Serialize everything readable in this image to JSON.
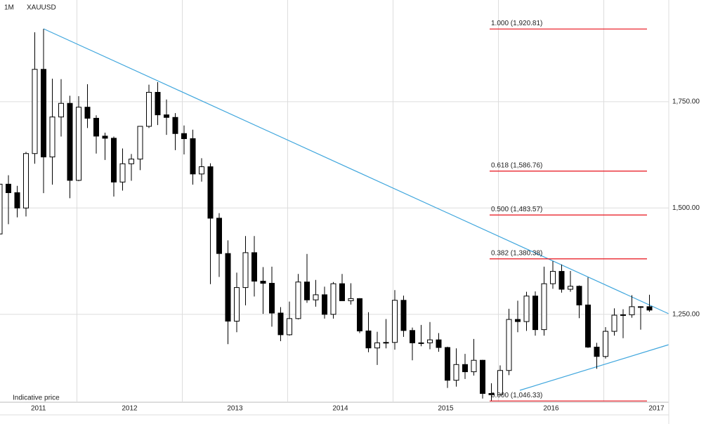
{
  "chart_data": {
    "type": "candlestick",
    "interval": "1M",
    "title": "XAUUSD",
    "note": "Indicative price",
    "x_labels": [
      "2011",
      "2012",
      "2013",
      "2014",
      "2015",
      "2016",
      "2017"
    ],
    "categories": [
      null,
      null,
      null,
      null,
      null,
      null,
      null,
      null,
      null,
      null,
      null,
      null,
      null,
      null,
      null,
      null,
      null,
      null,
      null,
      null,
      null,
      null,
      null,
      null,
      null,
      null,
      null,
      null,
      null,
      null,
      null,
      null,
      null,
      null,
      null,
      null,
      null,
      null,
      null,
      null,
      null,
      null,
      null,
      null,
      null,
      null,
      null,
      null,
      null,
      null,
      null,
      null,
      null,
      null,
      null,
      null,
      null,
      null,
      null,
      null,
      null,
      null,
      null,
      null,
      null,
      null,
      null,
      null,
      null,
      null,
      null,
      null,
      null,
      null,
      null
    ],
    "open": [
      1439,
      1556,
      1536,
      1500,
      1628,
      1826,
      1620,
      1714,
      1746,
      1565,
      1737,
      1711,
      1669,
      1664,
      1561,
      1604,
      1615,
      1692,
      1772,
      1719,
      1713,
      1675,
      1663,
      1580,
      1597,
      1476,
      1393,
      1234,
      1313,
      1395,
      1328,
      1323,
      1253,
      1202,
      1240,
      1326,
      1284,
      1296,
      1250,
      1322,
      1282,
      1287,
      1211,
      1171,
      1183,
      1184,
      1283,
      1212,
      1183,
      1183,
      1190,
      1172,
      1095,
      1132,
      1115,
      1142,
      1064,
      1061,
      1118,
      1238,
      1233,
      1293,
      1214,
      1322,
      1351,
      1309,
      1316,
      1272,
      1173,
      1151,
      1210,
      1248,
      1249,
      1268,
      1268
    ],
    "high": [
      1575,
      1577,
      1552,
      1632,
      1913,
      1921,
      1804,
      1803,
      1764,
      1763,
      1791,
      1718,
      1677,
      1668,
      1640,
      1627,
      1692,
      1790,
      1796,
      1755,
      1723,
      1694,
      1684,
      1617,
      1605,
      1488,
      1424,
      1348,
      1434,
      1434,
      1361,
      1362,
      1267,
      1280,
      1345,
      1392,
      1331,
      1315,
      1326,
      1345,
      1323,
      1288,
      1255,
      1209,
      1239,
      1307,
      1294,
      1219,
      1225,
      1232,
      1206,
      1174,
      1170,
      1157,
      1192,
      1143,
      1088,
      1130,
      1263,
      1282,
      1303,
      1304,
      1362,
      1375,
      1367,
      1352,
      1318,
      1337,
      1183,
      1220,
      1264,
      1262,
      1295,
      1269,
      1296
    ],
    "low": [
      1420,
      1462,
      1478,
      1480,
      1604,
      1535,
      1555,
      1668,
      1523,
      1563,
      1688,
      1628,
      1613,
      1527,
      1541,
      1564,
      1589,
      1688,
      1695,
      1672,
      1636,
      1626,
      1555,
      1562,
      1321,
      1338,
      1180,
      1208,
      1271,
      1292,
      1251,
      1221,
      1187,
      1200,
      1238,
      1277,
      1268,
      1240,
      1240,
      1282,
      1273,
      1206,
      1161,
      1131,
      1170,
      1167,
      1197,
      1142,
      1175,
      1168,
      1162,
      1077,
      1080,
      1098,
      1106,
      1052,
      1046,
      1062,
      1107,
      1208,
      1211,
      1200,
      1200,
      1310,
      1301,
      1303,
      1241,
      1171,
      1122,
      1146,
      1200,
      1194,
      1242,
      1214,
      1256
    ],
    "close": [
      1556,
      1536,
      1500,
      1628,
      1826,
      1620,
      1714,
      1746,
      1565,
      1737,
      1711,
      1669,
      1664,
      1561,
      1604,
      1615,
      1692,
      1772,
      1719,
      1713,
      1675,
      1663,
      1580,
      1597,
      1476,
      1393,
      1234,
      1313,
      1395,
      1328,
      1323,
      1253,
      1202,
      1240,
      1326,
      1284,
      1296,
      1250,
      1322,
      1282,
      1287,
      1211,
      1171,
      1183,
      1184,
      1283,
      1212,
      1183,
      1183,
      1190,
      1172,
      1095,
      1132,
      1115,
      1142,
      1064,
      1061,
      1118,
      1238,
      1233,
      1293,
      1214,
      1322,
      1351,
      1309,
      1316,
      1272,
      1173,
      1151,
      1210,
      1248,
      1249,
      1268,
      1268,
      1260
    ],
    "up_color": "#ffffff",
    "down_color": "#000000",
    "ylim": [
      1045,
      1989
    ],
    "yticks": [
      {
        "value": 1250,
        "label": "1,250.00"
      },
      {
        "value": 1500,
        "label": "1,500.00"
      },
      {
        "value": 1750,
        "label": "1,750.00"
      }
    ],
    "grid": true,
    "fib_color": "#e8101a",
    "fib_levels": [
      {
        "price": 1920.81,
        "label": "1.000 (1,920.81)"
      },
      {
        "price": 1586.76,
        "label": "0.618 (1,586.76)"
      },
      {
        "price": 1483.57,
        "label": "0.500 (1,483.57)"
      },
      {
        "price": 1380.38,
        "label": "0.382 (1,380.38)"
      },
      {
        "price": 1046.33,
        "label": "0.000 (1,046.33)"
      }
    ]
  }
}
